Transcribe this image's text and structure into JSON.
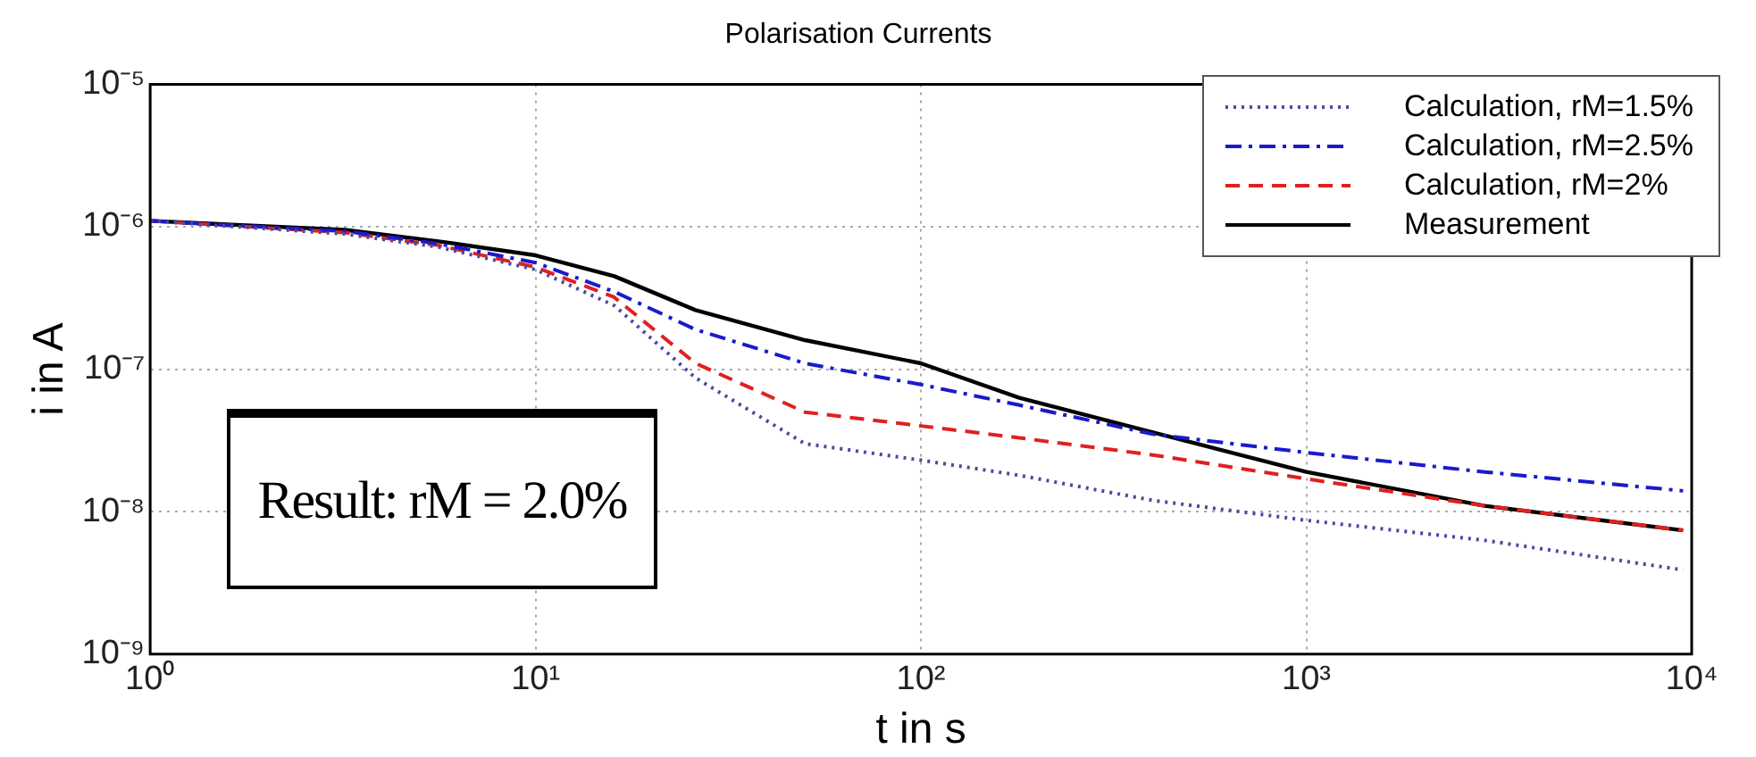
{
  "chart_data": {
    "type": "line",
    "title": "Polarisation Currents",
    "xlabel": "t in s",
    "ylabel": "i in A",
    "log": "xy",
    "grid": true,
    "legend": "top right",
    "marker": "none",
    "xlim": [
      1,
      10000
    ],
    "ylim": [
      1e-09,
      1e-05
    ],
    "xticks": [
      {
        "value": 1,
        "label": "10⁰"
      },
      {
        "value": 10,
        "label": "10¹"
      },
      {
        "value": 100,
        "label": "10²"
      },
      {
        "value": 1000,
        "label": "10³"
      },
      {
        "value": 10000,
        "label": "10⁴"
      }
    ],
    "yticks": [
      {
        "value": 1e-09,
        "label": "10⁻⁹"
      },
      {
        "value": 1e-08,
        "label": "10⁻⁸"
      },
      {
        "value": 1e-07,
        "label": "10⁻⁷"
      },
      {
        "value": 1e-06,
        "label": "10⁻⁶"
      },
      {
        "value": 1e-05,
        "label": "10⁻⁵"
      }
    ],
    "x": [
      1,
      3.2,
      5.6,
      10,
      16,
      26,
      50,
      100,
      180,
      400,
      1000,
      2900,
      9500
    ],
    "series": [
      {
        "name": "Calculation, rM=1.5%",
        "color": "#4a4aa0",
        "line_style": "dotted",
        "values": [
          1.1e-06,
          8.9e-07,
          7.2e-07,
          5e-07,
          2.8e-07,
          8.7e-08,
          3e-08,
          2.3e-08,
          1.8e-08,
          1.2e-08,
          8.7e-09,
          6.3e-09,
          3.9e-09
        ]
      },
      {
        "name": "Calculation, rM=2.5%",
        "color": "#1a1acc",
        "line_style": "dashdot",
        "values": [
          1.1e-06,
          9.3e-07,
          7.6e-07,
          5.6e-07,
          3.5e-07,
          1.9e-07,
          1.1e-07,
          7.8e-08,
          5.6e-08,
          3.5e-08,
          2.6e-08,
          1.9e-08,
          1.4e-08
        ]
      },
      {
        "name": "Calculation, rM=2%",
        "color": "#e02020",
        "line_style": "dashed",
        "values": [
          1.1e-06,
          9.1e-07,
          7.4e-07,
          5.2e-07,
          3.2e-07,
          1.1e-07,
          5e-08,
          4e-08,
          3.3e-08,
          2.5e-08,
          1.7e-08,
          1.1e-08,
          7.4e-09
        ]
      },
      {
        "name": "Measurement",
        "color": "#000000",
        "line_style": "solid",
        "values": [
          1.1e-06,
          9.5e-07,
          7.9e-07,
          6.3e-07,
          4.5e-07,
          2.6e-07,
          1.6e-07,
          1.1e-07,
          6.3e-08,
          3.6e-08,
          1.9e-08,
          1.1e-08,
          7.4e-09
        ]
      }
    ],
    "annotations": [
      "Result: rM = 2.0%"
    ]
  }
}
